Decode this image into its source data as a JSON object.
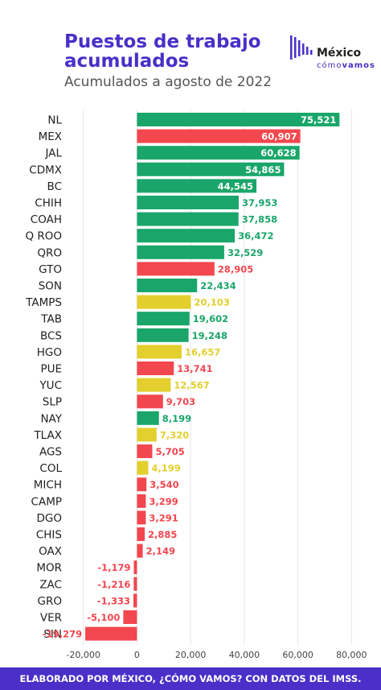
{
  "header": {
    "title": "Puestos de trabajo acumulados",
    "subtitle": "Acumulados a agosto de 2022"
  },
  "logo": {
    "word": "México",
    "sub_light": "cómo",
    "sub_bold": "vamos"
  },
  "footer": {
    "text": "ELABORADO POR MÉXICO, ¿CÓMO VAMOS? CON DATOS DEL IMSS."
  },
  "colors": {
    "green": "#1aa66a",
    "red": "#f2474f",
    "yellow": "#e3cf2d",
    "brand": "#4a2fc8",
    "grid": "#e6e6e6"
  },
  "chart_data": {
    "type": "bar",
    "orientation": "horizontal",
    "categories": [
      "NL",
      "MEX",
      "JAL",
      "CDMX",
      "BC",
      "CHIH",
      "COAH",
      "Q ROO",
      "QRO",
      "GTO",
      "SON",
      "TAMPS",
      "TAB",
      "BCS",
      "HGO",
      "PUE",
      "YUC",
      "SLP",
      "NAY",
      "TLAX",
      "AGS",
      "COL",
      "MICH",
      "CAMP",
      "DGO",
      "CHIS",
      "OAX",
      "MOR",
      "ZAC",
      "GRO",
      "VER",
      "SIN"
    ],
    "values": [
      75521,
      60907,
      60628,
      54865,
      44545,
      37953,
      37858,
      36472,
      32529,
      28905,
      22434,
      20103,
      19602,
      19248,
      16657,
      13741,
      12567,
      9703,
      8199,
      7320,
      5705,
      4199,
      3540,
      3299,
      3291,
      2885,
      2149,
      -1179,
      -1216,
      -1333,
      -5100,
      -19279
    ],
    "labels": [
      "75,521",
      "60,907",
      "60,628",
      "54,865",
      "44,545",
      "37,953",
      "37,858",
      "36,472",
      "32,529",
      "28,905",
      "22,434",
      "20,103",
      "19,602",
      "19,248",
      "16,657",
      "13,741",
      "12,567",
      "9,703",
      "8,199",
      "7,320",
      "5,705",
      "4,199",
      "3,540",
      "3,299",
      "3,291",
      "2,885",
      "2,149",
      "-1,179",
      "-1,216",
      "-1,333",
      "-5,100",
      "-19,279"
    ],
    "bar_colors": [
      "green",
      "red",
      "green",
      "green",
      "green",
      "green",
      "green",
      "green",
      "green",
      "red",
      "green",
      "yellow",
      "green",
      "green",
      "yellow",
      "red",
      "yellow",
      "red",
      "green",
      "yellow",
      "red",
      "yellow",
      "red",
      "red",
      "red",
      "red",
      "red",
      "red",
      "red",
      "red",
      "red",
      "red"
    ],
    "xlim": [
      -25000,
      85000
    ],
    "xticks": [
      -20000,
      0,
      20000,
      40000,
      60000,
      80000
    ],
    "xtick_labels": [
      "-20,000",
      "0",
      "20,000",
      "40,000",
      "60,000",
      "80,000"
    ],
    "grid": true,
    "legend": "none"
  }
}
